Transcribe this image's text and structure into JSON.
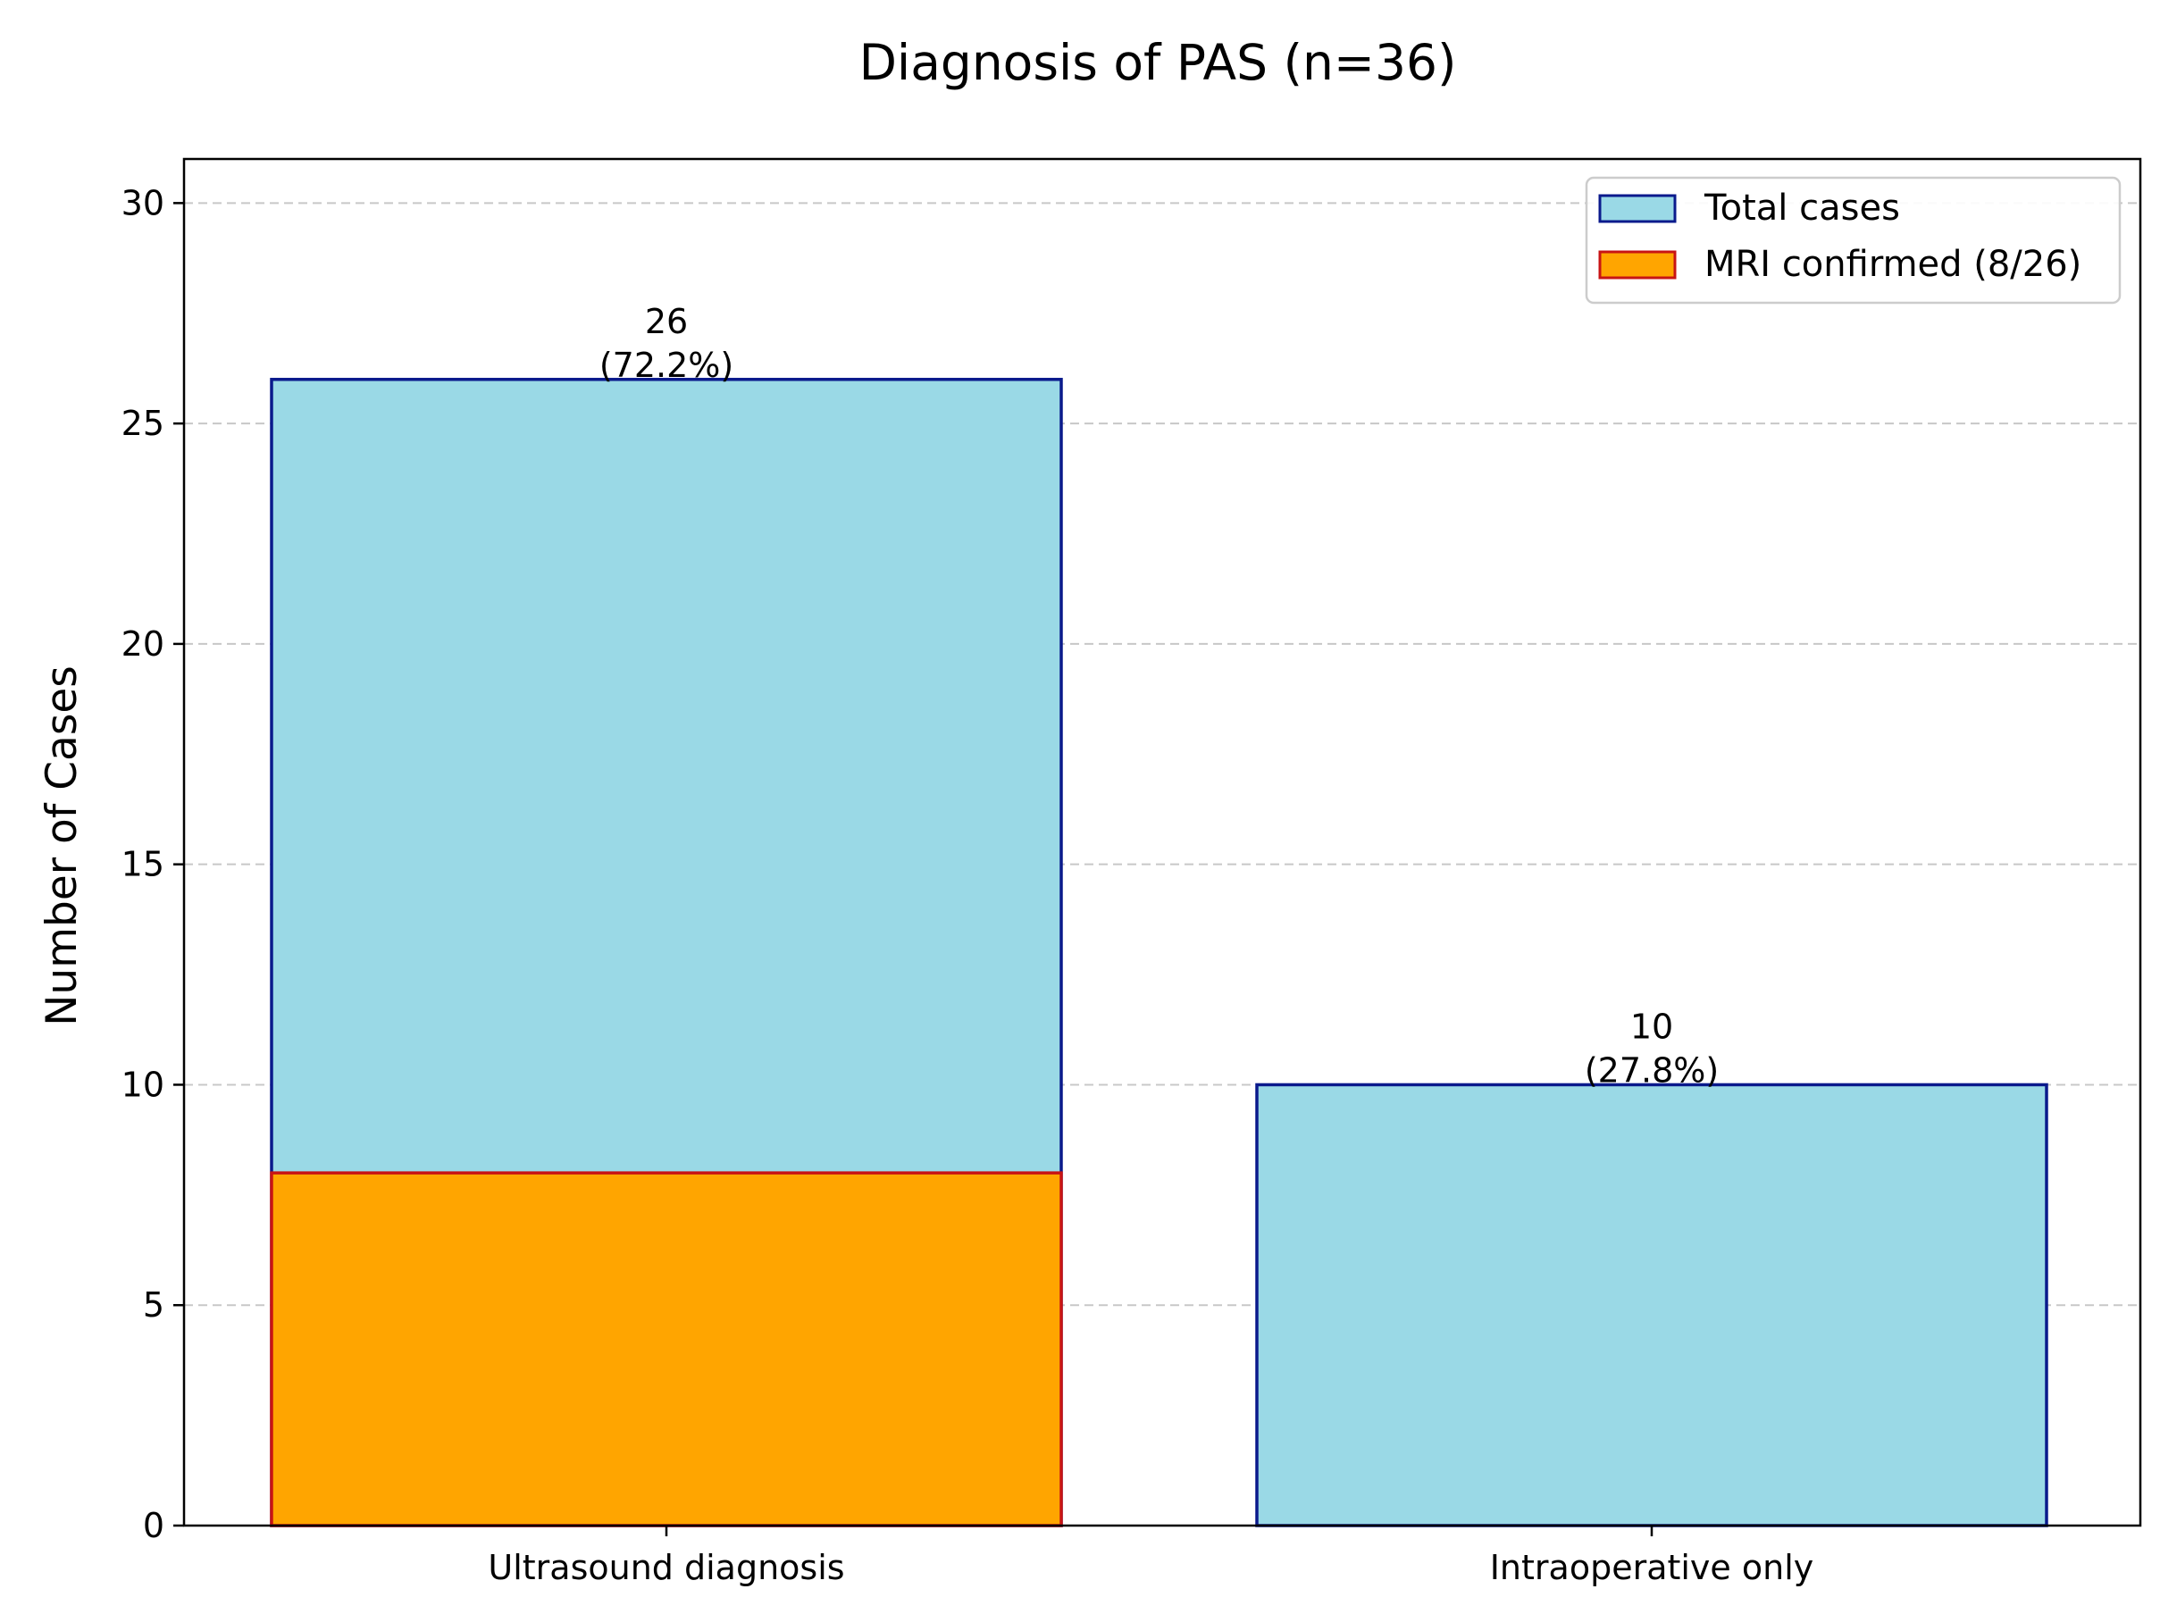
{
  "chart_data": {
    "type": "bar",
    "stacked": "overlay",
    "title": "Diagnosis of PAS (n=36)",
    "xlabel": "",
    "ylabel": "Number of Cases",
    "ylim": [
      0,
      31
    ],
    "yticks": [
      0,
      5,
      10,
      15,
      20,
      25,
      30
    ],
    "grid": "y-dashed",
    "categories": [
      "Ultrasound diagnosis",
      "Intraoperative only"
    ],
    "series": [
      {
        "name": "Total cases",
        "values": [
          26,
          10
        ],
        "color": "#9ad9e6",
        "edge_color": "#0a1a8c"
      },
      {
        "name": "MRI confirmed (8/26)",
        "values": [
          8,
          null
        ],
        "color": "#ffa500",
        "edge_color": "#c81414"
      }
    ],
    "data_labels": [
      {
        "value": "26",
        "percent": "(72.2%)"
      },
      {
        "value": "10",
        "percent": "(27.8%)"
      }
    ],
    "legend_position": "top-right"
  }
}
